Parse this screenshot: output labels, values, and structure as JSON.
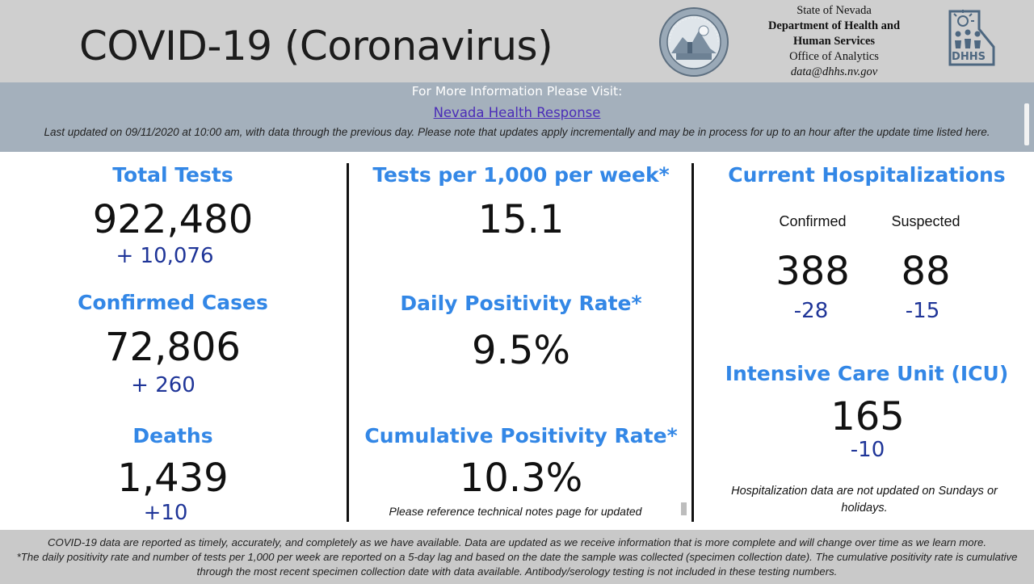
{
  "header": {
    "title": "COVID-19 (Coronavirus)",
    "agency": {
      "line1": "State of Nevada",
      "line2": "Department of Health and",
      "line3": "Human Services",
      "line4": "Office of Analytics",
      "email": "data@dhhs.nv.gov"
    },
    "seal_icon": "nevada-state-seal-icon",
    "logo_icon": "dhhs-logo-icon",
    "logo_text": "DHHS"
  },
  "info_bar": {
    "heading": "For More Information Please Visit:",
    "link_text": "Nevada Health Response",
    "updated_note": "Last updated on 09/11/2020 at 10:00 am, with data through the previous day.  Please note that updates apply incrementally and may be in process for up to an hour after the update time listed here."
  },
  "total_tests": {
    "label": "Total Tests",
    "value": "922,480",
    "change": "+ 10,076"
  },
  "confirmed_cases": {
    "label": "Confirmed Cases",
    "value": "72,806",
    "change": "+ 260"
  },
  "deaths": {
    "label": "Deaths",
    "value": "1,439",
    "change": "+10"
  },
  "tests_per_1000": {
    "label": "Tests per 1,000 per week*",
    "value": "15.1"
  },
  "daily_positivity": {
    "label": "Daily Positivity Rate*",
    "value": "9.5%"
  },
  "cumulative_positivity": {
    "label": "Cumulative Positivity Rate*",
    "value": "10.3%",
    "note": "Please reference technical notes page for updated"
  },
  "hospitalizations": {
    "label": "Current Hospitalizations",
    "confirmed_label": "Confirmed",
    "suspected_label": "Suspected",
    "confirmed_value": "388",
    "suspected_value": "88",
    "confirmed_change": "-28",
    "suspected_change": "-15"
  },
  "icu": {
    "label": "Intensive Care Unit (ICU)",
    "value": "165",
    "change": "-10",
    "note": "Hospitalization data are not updated on Sundays or holidays."
  },
  "footer": {
    "line1": "COVID-19 data are reported as timely, accurately, and completely as we have available.  Data are updated as we receive information that is more complete and will change over time as we learn more.",
    "line2": "*The daily positivity rate and number of tests per 1,000 per week are reported on a 5-day lag and based on the date the sample was collected (specimen collection date).  The cumulative positivity rate is cumulative through the most recent specimen collection date with data available.  Antibody/serology testing is not included in these testing numbers."
  },
  "colors": {
    "label_blue": "#3387e6",
    "delta_navy": "#1f3598",
    "header_gray": "#cfcfcf",
    "info_bar": "#a4b0bc",
    "footer_gray": "#c9c9c9"
  }
}
